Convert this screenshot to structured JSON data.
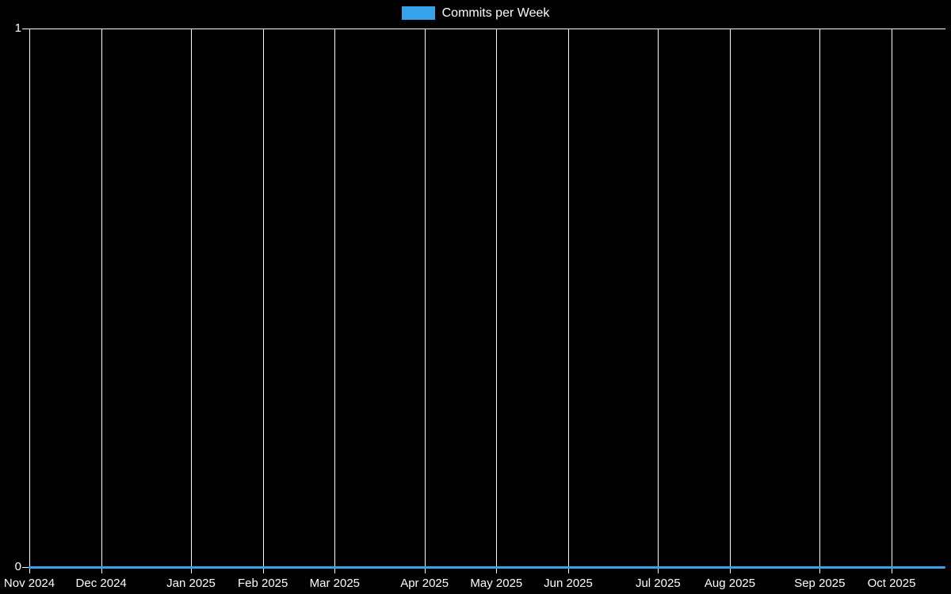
{
  "page": {
    "background": "#000000",
    "text_color": "#ffffff",
    "gridline_color": "#ffffff"
  },
  "legend": {
    "items": [
      {
        "label": "Commits per Week",
        "swatch_color": "#36a2eb"
      }
    ]
  },
  "chart_data": {
    "type": "line",
    "title": "Commits per Week",
    "legend_position": "top-center",
    "background": "#000000",
    "grid": {
      "vertical": true,
      "horizontal": "top-edge-only",
      "color": "#ffffff"
    },
    "x_axis": {
      "unit": "week",
      "total_weeks": 51,
      "ticks": [
        {
          "label": "Nov 2024",
          "week_offset": 0
        },
        {
          "label": "Dec 2024",
          "week_offset": 4
        },
        {
          "label": "Jan 2025",
          "week_offset": 9
        },
        {
          "label": "Feb 2025",
          "week_offset": 13
        },
        {
          "label": "Mar 2025",
          "week_offset": 17
        },
        {
          "label": "Apr 2025",
          "week_offset": 22
        },
        {
          "label": "May 2025",
          "week_offset": 26
        },
        {
          "label": "Jun 2025",
          "week_offset": 30
        },
        {
          "label": "Jul 2025",
          "week_offset": 35
        },
        {
          "label": "Aug 2025",
          "week_offset": 39
        },
        {
          "label": "Sep 2025",
          "week_offset": 44
        },
        {
          "label": "Oct 2025",
          "week_offset": 48
        }
      ]
    },
    "y_axis": {
      "min": 0,
      "max": 1,
      "ticks": [
        {
          "label": "1",
          "value": 1
        },
        {
          "label": "0",
          "value": 0
        }
      ]
    },
    "series": [
      {
        "name": "Commits per Week",
        "color": "#36a2eb",
        "values": [
          0,
          0,
          0,
          0,
          0,
          0,
          0,
          0,
          0,
          0,
          0,
          0,
          0,
          0,
          0,
          0,
          0,
          0,
          0,
          0,
          0,
          0,
          0,
          0,
          0,
          0,
          0,
          0,
          0,
          0,
          0,
          0,
          0,
          0,
          0,
          0,
          0,
          0,
          0,
          0,
          0,
          0,
          0,
          0,
          0,
          0,
          0,
          0,
          0,
          0,
          0,
          0
        ]
      }
    ]
  }
}
